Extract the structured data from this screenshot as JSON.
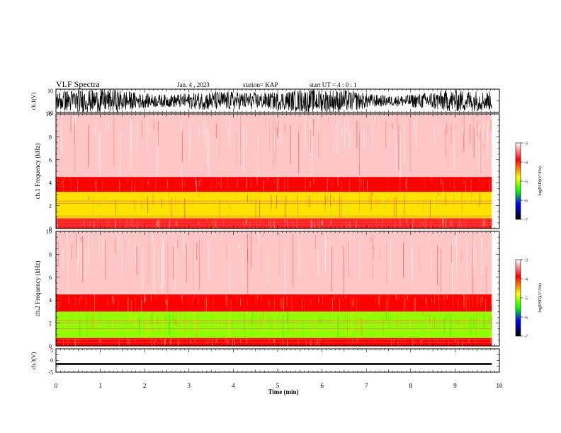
{
  "header": {
    "title": "VLF Spectra",
    "date": "Jan. 4 , 2023",
    "station": "station= KAP",
    "start": "start UT = 4 : 0 : 1"
  },
  "chart_data": [
    {
      "type": "line",
      "name": "ch1-waveform",
      "ylabel": "ch.1(V)",
      "ylim": [
        -10,
        10
      ],
      "yticks": [
        "10",
        "-10"
      ],
      "xlim": [
        0,
        10
      ],
      "data_end_min": 9.83,
      "description_visible": "dense oscillating voltage trace filling most of the range"
    },
    {
      "type": "heatmap",
      "name": "ch1-spectrogram",
      "ylabel": "ch.1 Frequency (kHz)",
      "ylim": [
        0,
        10
      ],
      "yticks": [
        "0",
        "2",
        "4",
        "6",
        "8",
        "10"
      ],
      "xlim": [
        0,
        10
      ],
      "data_end_min": 9.83,
      "bands": [
        {
          "from_khz": 0.0,
          "to_khz": 0.9,
          "level": -3.8
        },
        {
          "from_khz": 0.9,
          "to_khz": 3.2,
          "level": -4.7
        },
        {
          "from_khz": 3.2,
          "to_khz": 4.5,
          "level": -3.9
        },
        {
          "from_khz": 4.5,
          "to_khz": 10.0,
          "level": -3.2
        }
      ],
      "tone_lines_khz": [
        0.3,
        0.55,
        0.8,
        1.1,
        2.2,
        2.4
      ]
    },
    {
      "type": "heatmap",
      "name": "ch2-spectrogram",
      "ylabel": "ch.2 Frequency (kHz)",
      "ylim": [
        0,
        10
      ],
      "yticks": [
        "0",
        "2",
        "4",
        "6",
        "8",
        "10"
      ],
      "xlim": [
        0,
        10
      ],
      "data_end_min": 9.83,
      "bands": [
        {
          "from_khz": 0.0,
          "to_khz": 0.7,
          "level": -3.9
        },
        {
          "from_khz": 0.7,
          "to_khz": 3.0,
          "level": -5.1
        },
        {
          "from_khz": 3.0,
          "to_khz": 4.5,
          "level": -3.9
        },
        {
          "from_khz": 4.5,
          "to_khz": 10.0,
          "level": -3.2
        }
      ],
      "tone_lines_khz": [
        0.3,
        0.6,
        1.5,
        2.0,
        2.2
      ]
    },
    {
      "type": "line",
      "name": "ch3-waveform",
      "ylabel": "ch.3(V)",
      "ylim": [
        -5,
        5
      ],
      "yticks": [
        "5",
        "0",
        "-5"
      ],
      "xlim": [
        0,
        10
      ],
      "data_end_min": 9.83,
      "center_v": -1.5,
      "amplitude_v": 0.4
    }
  ],
  "x_axis": {
    "label": "Time (min)",
    "ticks": [
      "0",
      "1",
      "2",
      "3",
      "4",
      "5",
      "6",
      "7",
      "8",
      "9",
      "10"
    ]
  },
  "colorbar": {
    "label": "log(PSD)(V²/Hz)",
    "range": [
      -7,
      -3
    ],
    "ticks": [
      "-3",
      "-4",
      "-5",
      "-6",
      "-7"
    ],
    "colors": [
      "#ffffff",
      "#ff0000",
      "#ffff00",
      "#00ff00",
      "#0000ff",
      "#000000"
    ]
  }
}
